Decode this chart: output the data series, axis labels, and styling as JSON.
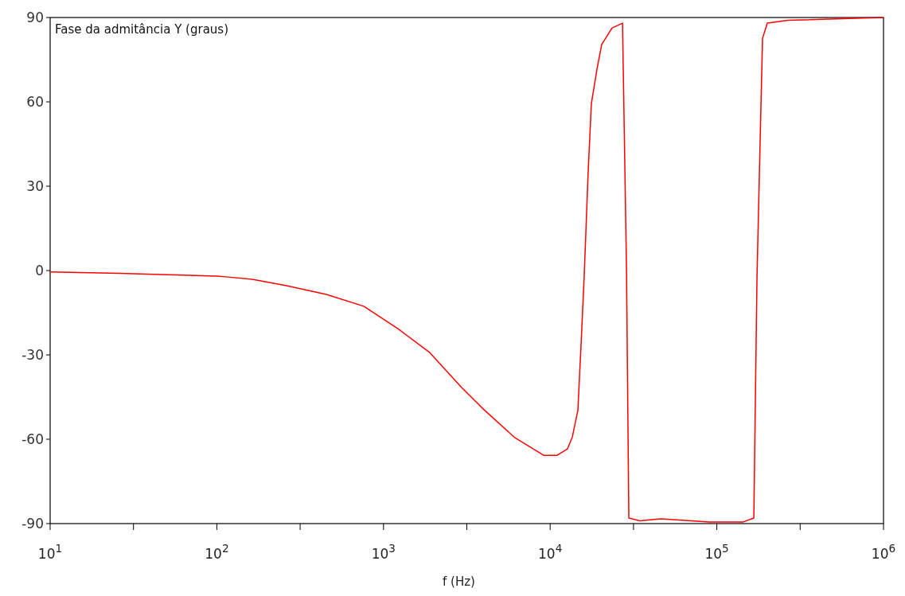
{
  "chart_data": {
    "type": "line",
    "ylabel": "Fase da admitância Y (graus)",
    "xlabel": "f (Hz)",
    "log": "x",
    "grid": false,
    "marker": "none",
    "line_style": "solid",
    "xlim": [
      10,
      1000000
    ],
    "ylim": [
      -90,
      90
    ],
    "xticks": [
      {
        "value": 10,
        "label": "10$^{1}$"
      },
      {
        "value": 31.62,
        "label": null
      },
      {
        "value": 100,
        "label": "10$^{2}$"
      },
      {
        "value": 316.2,
        "label": null
      },
      {
        "value": 1000,
        "label": "10$^{3}$"
      },
      {
        "value": 3162,
        "label": null
      },
      {
        "value": 10000,
        "label": "10$^{4}$"
      },
      {
        "value": 31620,
        "label": null
      },
      {
        "value": 100000,
        "label": "10$^{5}$"
      },
      {
        "value": 316200,
        "label": null
      },
      {
        "value": 1000000,
        "label": "10$^{6}$"
      }
    ],
    "yticks": [
      -90,
      -60,
      -30,
      0,
      30,
      60,
      90
    ],
    "series": [
      {
        "color": "#ff0000",
        "x": [
          10,
          26,
          100,
          117,
          163,
          262,
          454,
          762,
          1222,
          1897,
          2944,
          4009,
          6152,
          9141,
          11020,
          12710,
          13580,
          14660,
          15320,
          16000,
          16900,
          17670,
          19090,
          20380,
          23530,
          27170,
          28710,
          29650,
          34590,
          46030,
          89950,
          144300,
          166700,
          174200,
          188000,
          200900,
          267300,
          1000000
        ],
        "values": [
          -0.5,
          -1,
          -2,
          -2.3,
          -3.1,
          -5.4,
          -8.5,
          -12.7,
          -20.7,
          -29.2,
          -41.6,
          -49.5,
          -59.5,
          -65.7,
          -65.7,
          -63.4,
          -59.2,
          -49.8,
          -26.6,
          -2,
          34.8,
          59.4,
          71.6,
          80.4,
          86.3,
          88,
          0.5,
          -88,
          -89,
          -88.3,
          -89.4,
          -89.4,
          -88,
          -2,
          82.6,
          88,
          89,
          90
        ]
      }
    ]
  }
}
